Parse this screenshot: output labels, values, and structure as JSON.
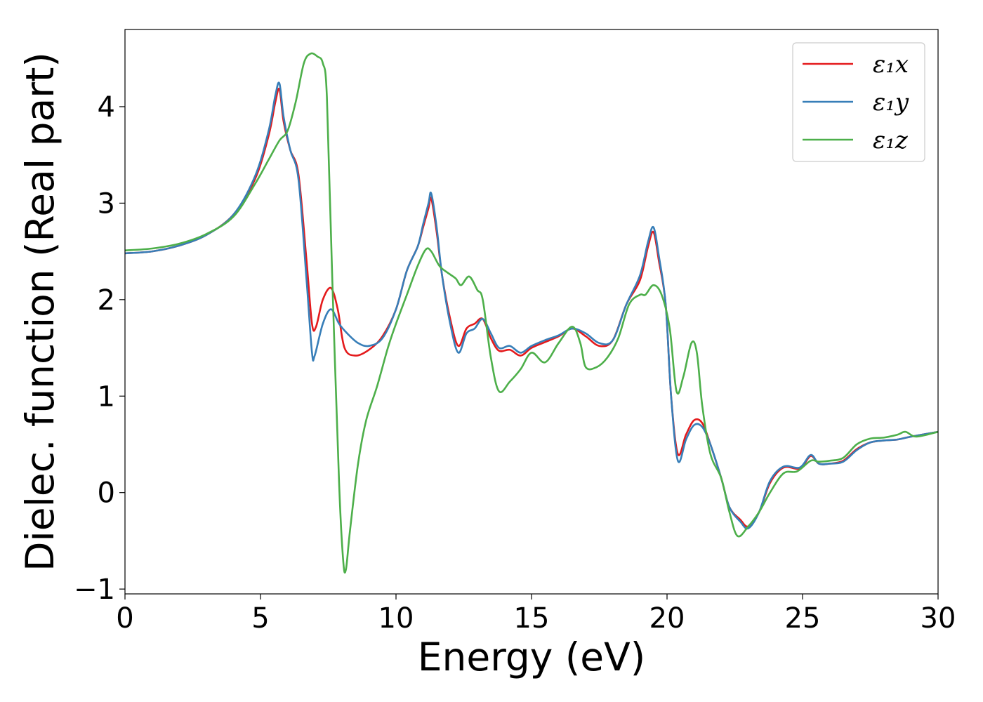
{
  "chart_data": {
    "type": "line",
    "title": "",
    "xlabel": "Energy (eV)",
    "ylabel": "Dielec. function (Real part)",
    "xlim": [
      0,
      30
    ],
    "ylim": [
      -1.05,
      4.8
    ],
    "xticks": [
      0,
      5,
      10,
      15,
      20,
      25,
      30
    ],
    "xtick_labels": [
      "0",
      "5",
      "10",
      "15",
      "20",
      "25",
      "30"
    ],
    "yticks": [
      -1,
      0,
      1,
      2,
      3,
      4
    ],
    "ytick_labels": [
      "−1",
      "0",
      "1",
      "2",
      "3",
      "4"
    ],
    "grid": false,
    "legend_position": "top-right",
    "series": [
      {
        "name": "ε₁x",
        "color": "#e41a1c",
        "points": [
          [
            0,
            2.48
          ],
          [
            1,
            2.5
          ],
          [
            2,
            2.56
          ],
          [
            3,
            2.67
          ],
          [
            4,
            2.88
          ],
          [
            4.8,
            3.25
          ],
          [
            5.3,
            3.7
          ],
          [
            5.55,
            4.05
          ],
          [
            5.7,
            4.18
          ],
          [
            5.85,
            3.85
          ],
          [
            6.1,
            3.55
          ],
          [
            6.4,
            3.3
          ],
          [
            6.7,
            2.4
          ],
          [
            6.9,
            1.75
          ],
          [
            7.05,
            1.72
          ],
          [
            7.3,
            2.0
          ],
          [
            7.6,
            2.12
          ],
          [
            7.85,
            1.9
          ],
          [
            8.1,
            1.5
          ],
          [
            8.5,
            1.42
          ],
          [
            9.0,
            1.48
          ],
          [
            9.5,
            1.62
          ],
          [
            10.0,
            1.9
          ],
          [
            10.4,
            2.3
          ],
          [
            10.8,
            2.55
          ],
          [
            11.0,
            2.75
          ],
          [
            11.2,
            2.95
          ],
          [
            11.3,
            3.05
          ],
          [
            11.5,
            2.7
          ],
          [
            11.7,
            2.25
          ],
          [
            12.0,
            1.8
          ],
          [
            12.3,
            1.52
          ],
          [
            12.6,
            1.7
          ],
          [
            12.9,
            1.75
          ],
          [
            13.2,
            1.8
          ],
          [
            13.5,
            1.6
          ],
          [
            13.8,
            1.47
          ],
          [
            14.2,
            1.48
          ],
          [
            14.6,
            1.42
          ],
          [
            15.0,
            1.5
          ],
          [
            15.5,
            1.56
          ],
          [
            16.0,
            1.62
          ],
          [
            16.5,
            1.7
          ],
          [
            17.0,
            1.62
          ],
          [
            17.5,
            1.52
          ],
          [
            18.0,
            1.58
          ],
          [
            18.5,
            1.95
          ],
          [
            19.0,
            2.2
          ],
          [
            19.3,
            2.55
          ],
          [
            19.5,
            2.7
          ],
          [
            19.7,
            2.4
          ],
          [
            19.95,
            1.95
          ],
          [
            20.15,
            1.0
          ],
          [
            20.4,
            0.4
          ],
          [
            20.7,
            0.6
          ],
          [
            21.0,
            0.75
          ],
          [
            21.3,
            0.72
          ],
          [
            21.6,
            0.5
          ],
          [
            22.0,
            0.15
          ],
          [
            22.3,
            -0.15
          ],
          [
            22.7,
            -0.28
          ],
          [
            23.0,
            -0.35
          ],
          [
            23.4,
            -0.2
          ],
          [
            23.8,
            0.1
          ],
          [
            24.3,
            0.26
          ],
          [
            24.9,
            0.25
          ],
          [
            25.3,
            0.38
          ],
          [
            25.6,
            0.3
          ],
          [
            26.0,
            0.3
          ],
          [
            26.5,
            0.33
          ],
          [
            27.0,
            0.45
          ],
          [
            27.5,
            0.52
          ],
          [
            28.0,
            0.54
          ],
          [
            28.5,
            0.55
          ],
          [
            29.0,
            0.58
          ],
          [
            30,
            0.63
          ]
        ]
      },
      {
        "name": "ε₁y",
        "color": "#377eb8",
        "points": [
          [
            0,
            2.48
          ],
          [
            1,
            2.5
          ],
          [
            2,
            2.56
          ],
          [
            3,
            2.67
          ],
          [
            4,
            2.88
          ],
          [
            4.8,
            3.28
          ],
          [
            5.3,
            3.75
          ],
          [
            5.55,
            4.12
          ],
          [
            5.7,
            4.24
          ],
          [
            5.85,
            3.9
          ],
          [
            6.1,
            3.55
          ],
          [
            6.4,
            3.25
          ],
          [
            6.7,
            2.2
          ],
          [
            6.9,
            1.45
          ],
          [
            7.0,
            1.42
          ],
          [
            7.3,
            1.75
          ],
          [
            7.6,
            1.9
          ],
          [
            7.9,
            1.75
          ],
          [
            8.2,
            1.65
          ],
          [
            8.6,
            1.55
          ],
          [
            9.0,
            1.52
          ],
          [
            9.5,
            1.6
          ],
          [
            10.0,
            1.9
          ],
          [
            10.4,
            2.3
          ],
          [
            10.8,
            2.55
          ],
          [
            11.0,
            2.78
          ],
          [
            11.2,
            3.0
          ],
          [
            11.3,
            3.1
          ],
          [
            11.5,
            2.75
          ],
          [
            11.7,
            2.25
          ],
          [
            12.0,
            1.75
          ],
          [
            12.3,
            1.45
          ],
          [
            12.6,
            1.65
          ],
          [
            12.9,
            1.7
          ],
          [
            13.2,
            1.8
          ],
          [
            13.5,
            1.65
          ],
          [
            13.8,
            1.5
          ],
          [
            14.2,
            1.52
          ],
          [
            14.6,
            1.45
          ],
          [
            15.0,
            1.52
          ],
          [
            15.5,
            1.58
          ],
          [
            16.0,
            1.63
          ],
          [
            16.5,
            1.7
          ],
          [
            17.0,
            1.65
          ],
          [
            17.5,
            1.55
          ],
          [
            18.0,
            1.58
          ],
          [
            18.5,
            1.95
          ],
          [
            19.0,
            2.25
          ],
          [
            19.3,
            2.6
          ],
          [
            19.5,
            2.75
          ],
          [
            19.7,
            2.45
          ],
          [
            19.95,
            1.95
          ],
          [
            20.15,
            1.0
          ],
          [
            20.4,
            0.33
          ],
          [
            20.7,
            0.55
          ],
          [
            21.0,
            0.7
          ],
          [
            21.3,
            0.68
          ],
          [
            21.6,
            0.5
          ],
          [
            22.0,
            0.15
          ],
          [
            22.3,
            -0.15
          ],
          [
            22.7,
            -0.3
          ],
          [
            23.0,
            -0.37
          ],
          [
            23.4,
            -0.2
          ],
          [
            23.8,
            0.12
          ],
          [
            24.3,
            0.27
          ],
          [
            24.9,
            0.26
          ],
          [
            25.3,
            0.39
          ],
          [
            25.6,
            0.3
          ],
          [
            26.0,
            0.3
          ],
          [
            26.5,
            0.32
          ],
          [
            27.0,
            0.44
          ],
          [
            27.5,
            0.52
          ],
          [
            28.0,
            0.54
          ],
          [
            28.5,
            0.55
          ],
          [
            29.0,
            0.58
          ],
          [
            30,
            0.63
          ]
        ]
      },
      {
        "name": "ε₁z",
        "color": "#4daf4a",
        "points": [
          [
            0,
            2.51
          ],
          [
            1,
            2.53
          ],
          [
            2,
            2.58
          ],
          [
            3,
            2.68
          ],
          [
            4,
            2.86
          ],
          [
            4.8,
            3.2
          ],
          [
            5.3,
            3.45
          ],
          [
            5.7,
            3.65
          ],
          [
            6.0,
            3.75
          ],
          [
            6.3,
            4.05
          ],
          [
            6.6,
            4.45
          ],
          [
            6.85,
            4.55
          ],
          [
            7.1,
            4.52
          ],
          [
            7.3,
            4.45
          ],
          [
            7.45,
            4.1
          ],
          [
            7.65,
            2.2
          ],
          [
            7.9,
            0.1
          ],
          [
            8.05,
            -0.7
          ],
          [
            8.15,
            -0.8
          ],
          [
            8.3,
            -0.4
          ],
          [
            8.6,
            0.3
          ],
          [
            8.9,
            0.75
          ],
          [
            9.3,
            1.1
          ],
          [
            9.7,
            1.5
          ],
          [
            10.0,
            1.75
          ],
          [
            10.4,
            2.05
          ],
          [
            10.8,
            2.35
          ],
          [
            11.1,
            2.52
          ],
          [
            11.3,
            2.5
          ],
          [
            11.6,
            2.35
          ],
          [
            11.9,
            2.28
          ],
          [
            12.2,
            2.22
          ],
          [
            12.4,
            2.15
          ],
          [
            12.7,
            2.24
          ],
          [
            13.0,
            2.1
          ],
          [
            13.2,
            2.0
          ],
          [
            13.5,
            1.4
          ],
          [
            13.8,
            1.05
          ],
          [
            14.2,
            1.15
          ],
          [
            14.6,
            1.28
          ],
          [
            15.0,
            1.45
          ],
          [
            15.5,
            1.35
          ],
          [
            16.0,
            1.55
          ],
          [
            16.5,
            1.72
          ],
          [
            16.8,
            1.55
          ],
          [
            17.0,
            1.3
          ],
          [
            17.4,
            1.3
          ],
          [
            17.8,
            1.4
          ],
          [
            18.2,
            1.6
          ],
          [
            18.6,
            1.95
          ],
          [
            19.0,
            2.05
          ],
          [
            19.2,
            2.05
          ],
          [
            19.5,
            2.15
          ],
          [
            19.8,
            2.05
          ],
          [
            20.1,
            1.7
          ],
          [
            20.35,
            1.05
          ],
          [
            20.6,
            1.2
          ],
          [
            20.9,
            1.55
          ],
          [
            21.1,
            1.45
          ],
          [
            21.3,
            0.9
          ],
          [
            21.6,
            0.4
          ],
          [
            22.0,
            0.15
          ],
          [
            22.3,
            -0.2
          ],
          [
            22.6,
            -0.45
          ],
          [
            23.0,
            -0.35
          ],
          [
            23.4,
            -0.2
          ],
          [
            23.8,
            0.0
          ],
          [
            24.3,
            0.2
          ],
          [
            24.8,
            0.22
          ],
          [
            25.3,
            0.33
          ],
          [
            25.6,
            0.32
          ],
          [
            26.0,
            0.33
          ],
          [
            26.5,
            0.36
          ],
          [
            27.0,
            0.5
          ],
          [
            27.5,
            0.56
          ],
          [
            28.0,
            0.57
          ],
          [
            28.5,
            0.6
          ],
          [
            28.8,
            0.63
          ],
          [
            29.2,
            0.58
          ],
          [
            30,
            0.63
          ]
        ]
      }
    ]
  }
}
